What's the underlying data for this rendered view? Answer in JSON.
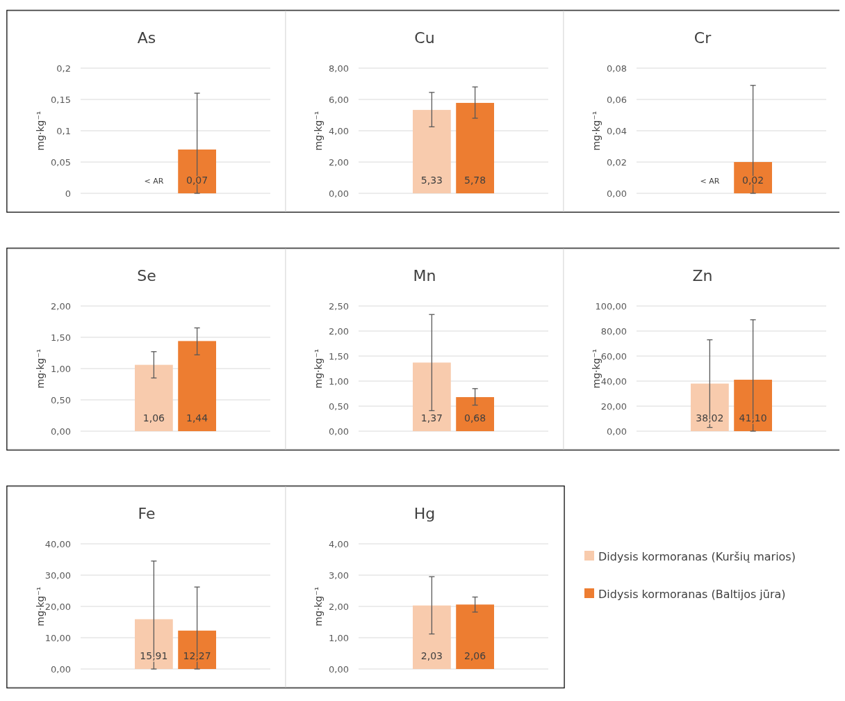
{
  "chart_data": [
    {
      "type": "bar",
      "title": "As",
      "ylabel": "mg·kg⁻¹",
      "categories": [
        null
      ],
      "grid": "y",
      "ylim": [
        0,
        0.2
      ],
      "yticks": [
        0,
        {
          "value": 0.05,
          "label": "0,05"
        },
        {
          "value": 0.1,
          "label": "0,1"
        },
        {
          "value": 0.15,
          "label": "0,15"
        },
        {
          "value": 0.2,
          "label": "0,2"
        }
      ],
      "series": [
        {
          "values": [
            null
          ],
          "value_labels": [
            "< AR"
          ]
        },
        {
          "color": "#ed7d31",
          "values": [
            0.07
          ],
          "value_labels": [
            "0,07"
          ],
          "errors": [
            [
              0,
              0.16
            ]
          ]
        }
      ]
    },
    {
      "type": "bar",
      "title": "Cu",
      "ylabel": "mg·kg⁻¹",
      "categories": [
        null
      ],
      "grid": "y",
      "ylim": [
        0,
        8
      ],
      "yticks": [
        {
          "value": 0,
          "label": "0,00"
        },
        {
          "value": 2,
          "label": "2,00"
        },
        {
          "value": 4,
          "label": "4,00"
        },
        {
          "value": 6,
          "label": "6,00"
        },
        {
          "value": 8,
          "label": "8,00"
        }
      ],
      "series": [
        {
          "color": "#f8cbad",
          "values": [
            5.33
          ],
          "value_labels": [
            "5,33"
          ],
          "errors": [
            [
              4.25,
              6.45
            ]
          ]
        },
        {
          "color": "#ed7d31",
          "values": [
            5.78
          ],
          "value_labels": [
            "5,78"
          ],
          "errors": [
            [
              4.8,
              6.8
            ]
          ]
        }
      ]
    },
    {
      "type": "bar",
      "title": "Cr",
      "ylabel": "mg·kg⁻¹",
      "categories": [
        null
      ],
      "grid": "y",
      "ylim": [
        0,
        0.08
      ],
      "yticks": [
        {
          "value": 0,
          "label": "0,00"
        },
        {
          "value": 0.02,
          "label": "0,02"
        },
        {
          "value": 0.04,
          "label": "0,04"
        },
        {
          "value": 0.06,
          "label": "0,06"
        },
        {
          "value": 0.08,
          "label": "0,08"
        }
      ],
      "series": [
        {
          "values": [
            null
          ],
          "value_labels": [
            "< AR"
          ]
        },
        {
          "color": "#ed7d31",
          "values": [
            0.02
          ],
          "value_labels": [
            "0,02"
          ],
          "errors": [
            [
              0,
              0.069
            ]
          ]
        }
      ]
    },
    {
      "type": "bar",
      "title": "Se",
      "ylabel": "mg·kg⁻¹",
      "categories": [
        null
      ],
      "grid": "y",
      "ylim": [
        0,
        2
      ],
      "yticks": [
        {
          "value": 0,
          "label": "0,00"
        },
        {
          "value": 0.5,
          "label": "0,50"
        },
        {
          "value": 1,
          "label": "1,00"
        },
        {
          "value": 1.5,
          "label": "1,50"
        },
        {
          "value": 2,
          "label": "2,00"
        }
      ],
      "series": [
        {
          "color": "#f8cbad",
          "values": [
            1.06
          ],
          "value_labels": [
            "1,06"
          ],
          "errors": [
            [
              0.85,
              1.27
            ]
          ]
        },
        {
          "color": "#ed7d31",
          "values": [
            1.44
          ],
          "value_labels": [
            "1,44"
          ],
          "errors": [
            [
              1.22,
              1.65
            ]
          ]
        }
      ]
    },
    {
      "type": "bar",
      "title": "Mn",
      "ylabel": "mg·kg⁻¹",
      "categories": [
        null
      ],
      "grid": "y",
      "ylim": [
        0,
        2.5
      ],
      "yticks": [
        {
          "value": 0,
          "label": "0,00"
        },
        {
          "value": 0.5,
          "label": "0,50"
        },
        {
          "value": 1,
          "label": "1,00"
        },
        {
          "value": 1.5,
          "label": "1,50"
        },
        {
          "value": 2,
          "label": "2,00"
        },
        {
          "value": 2.5,
          "label": "2,50"
        }
      ],
      "series": [
        {
          "color": "#f8cbad",
          "values": [
            1.37
          ],
          "value_labels": [
            "1,37"
          ],
          "errors": [
            [
              0.41,
              2.33
            ]
          ]
        },
        {
          "color": "#ed7d31",
          "values": [
            0.68
          ],
          "value_labels": [
            "0,68"
          ],
          "errors": [
            [
              0.52,
              0.85
            ]
          ]
        }
      ]
    },
    {
      "type": "bar",
      "title": "Zn",
      "ylabel": "mg·kg⁻¹",
      "categories": [
        null
      ],
      "grid": "y",
      "ylim": [
        0,
        100
      ],
      "yticks": [
        {
          "value": 0,
          "label": "0,00"
        },
        {
          "value": 20,
          "label": "20,00"
        },
        {
          "value": 40,
          "label": "40,00"
        },
        {
          "value": 60,
          "label": "60,00"
        },
        {
          "value": 80,
          "label": "80,00"
        },
        {
          "value": 100,
          "label": "100,00"
        }
      ],
      "series": [
        {
          "color": "#f8cbad",
          "values": [
            38.02
          ],
          "value_labels": [
            "38,02"
          ],
          "errors": [
            [
              3,
              73
            ]
          ]
        },
        {
          "color": "#ed7d31",
          "values": [
            41.1
          ],
          "value_labels": [
            "41,10"
          ],
          "errors": [
            [
              0,
              89
            ]
          ]
        }
      ]
    },
    {
      "type": "bar",
      "title": "Fe",
      "ylabel": "mg·kg⁻¹",
      "categories": [
        null
      ],
      "grid": "y",
      "ylim": [
        0,
        40
      ],
      "yticks": [
        {
          "value": 0,
          "label": "0,00"
        },
        {
          "value": 10,
          "label": "10,00"
        },
        {
          "value": 20,
          "label": "20,00"
        },
        {
          "value": 30,
          "label": "30,00"
        },
        {
          "value": 40,
          "label": "40,00"
        }
      ],
      "series": [
        {
          "color": "#f8cbad",
          "values": [
            15.91
          ],
          "value_labels": [
            "15,91"
          ],
          "errors": [
            [
              0,
              34.5
            ]
          ]
        },
        {
          "color": "#ed7d31",
          "values": [
            12.27
          ],
          "value_labels": [
            "12,27"
          ],
          "errors": [
            [
              0,
              26.2
            ]
          ]
        }
      ]
    },
    {
      "type": "bar",
      "title": "Hg",
      "ylabel": "mg·kg⁻¹",
      "categories": [
        null
      ],
      "grid": "y",
      "legend": "right",
      "ylim": [
        0,
        4
      ],
      "yticks": [
        {
          "value": 0,
          "label": "0,00"
        },
        {
          "value": 1,
          "label": "1,00"
        },
        {
          "value": 2,
          "label": "2,00"
        },
        {
          "value": 3,
          "label": "3,00"
        },
        {
          "value": 4,
          "label": "4,00"
        }
      ],
      "series": [
        {
          "name": "Didysis kormoranas (Kuršių marios)",
          "color": "#f8cbad",
          "values": [
            2.03
          ],
          "value_labels": [
            "2,03"
          ],
          "errors": [
            [
              1.12,
              2.95
            ]
          ]
        },
        {
          "name": "Didysis kormoranas (Baltijos jūra)",
          "color": "#ed7d31",
          "values": [
            2.06
          ],
          "value_labels": [
            "2,06"
          ],
          "errors": [
            [
              1.82,
              2.3
            ]
          ]
        }
      ]
    }
  ]
}
